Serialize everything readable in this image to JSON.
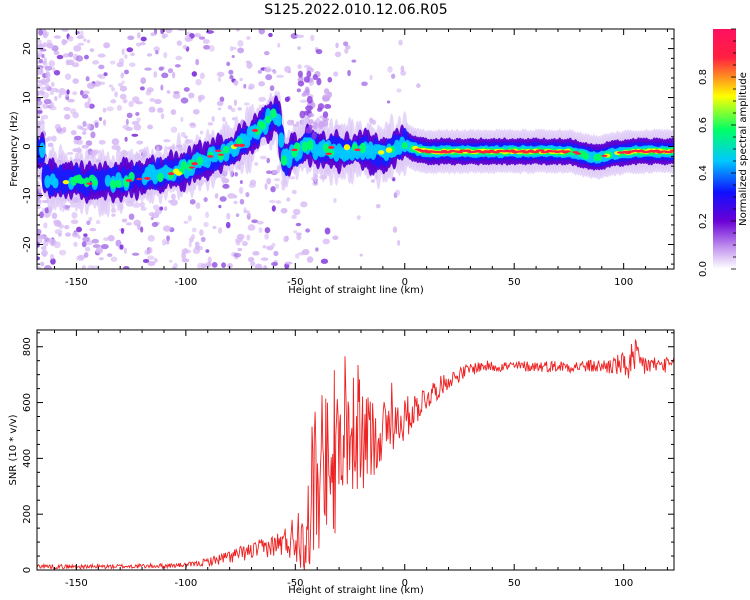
{
  "figure_title": "S125.2022.010.12.06.R05",
  "chart_data": [
    {
      "type": "heatmap",
      "title": "",
      "xlabel": "Height of straight line (km)",
      "ylabel": "Frequency (Hz)",
      "xlim": [
        -168,
        123
      ],
      "ylim": [
        -25,
        24
      ],
      "xticks": [
        -150,
        -100,
        -50,
        0,
        50,
        100
      ],
      "yticks": [
        -20,
        -10,
        0,
        10,
        20
      ],
      "colorbar": {
        "label": "Normalized spectral amplitude",
        "range": [
          0,
          1
        ],
        "ticks": [
          "0.0",
          "0.2",
          "0.4",
          "0.6",
          "0.8"
        ],
        "colors": [
          "#ffffff",
          "#c9a0f0",
          "#6b00d6",
          "#1010ff",
          "#00c8ff",
          "#00ff66",
          "#ffff00",
          "#ff2040"
        ]
      },
      "ridge": [
        {
          "x": -165,
          "y": -6.5
        },
        {
          "x": -150,
          "y": -7
        },
        {
          "x": -140,
          "y": -7.3
        },
        {
          "x": -130,
          "y": -7
        },
        {
          "x": -120,
          "y": -6.2
        },
        {
          "x": -110,
          "y": -5.5
        },
        {
          "x": -100,
          "y": -4.5
        },
        {
          "x": -95,
          "y": -3.5
        },
        {
          "x": -88,
          "y": -2
        },
        {
          "x": -80,
          "y": -1
        },
        {
          "x": -75,
          "y": 0.5
        },
        {
          "x": -68,
          "y": 3
        },
        {
          "x": -62,
          "y": 5.5
        },
        {
          "x": -58,
          "y": 6.5
        },
        {
          "x": -55,
          "y": -3
        },
        {
          "x": -50,
          "y": -1
        },
        {
          "x": -45,
          "y": 0.5
        },
        {
          "x": -40,
          "y": -0.5
        },
        {
          "x": -30,
          "y": -1
        },
        {
          "x": -20,
          "y": -0.8
        },
        {
          "x": -10,
          "y": -1.5
        },
        {
          "x": -3,
          "y": 0
        },
        {
          "x": 0,
          "y": 0.5
        },
        {
          "x": 5,
          "y": -0.5
        },
        {
          "x": 10,
          "y": -1
        },
        {
          "x": 50,
          "y": -1
        },
        {
          "x": 75,
          "y": -1
        },
        {
          "x": 82,
          "y": -1.8
        },
        {
          "x": 88,
          "y": -2.3
        },
        {
          "x": 95,
          "y": -1.5
        },
        {
          "x": 105,
          "y": -1
        },
        {
          "x": 120,
          "y": -1
        }
      ]
    },
    {
      "type": "line",
      "title": "",
      "xlabel": "Height of straight line (km)",
      "ylabel": "SNR (10 * v/v)",
      "xlim": [
        -168,
        123
      ],
      "ylim": [
        0,
        860
      ],
      "xticks": [
        -150,
        -100,
        -50,
        0,
        50,
        100
      ],
      "yticks": [
        0,
        200,
        400,
        600,
        800
      ],
      "series": [
        {
          "name": "SNR",
          "color": "#ee2222",
          "x": [
            -168,
            -160,
            -150,
            -140,
            -130,
            -120,
            -110,
            -100,
            -95,
            -90,
            -85,
            -80,
            -75,
            -70,
            -65,
            -60,
            -55,
            -50,
            -45,
            -40,
            -35,
            -30,
            -25,
            -20,
            -15,
            -10,
            -5,
            0,
            5,
            10,
            15,
            20,
            25,
            30,
            35,
            40,
            50,
            60,
            70,
            80,
            90,
            100,
            105,
            110,
            115,
            123
          ],
          "y": [
            15,
            12,
            12,
            12,
            13,
            14,
            15,
            18,
            22,
            30,
            38,
            48,
            58,
            68,
            78,
            88,
            100,
            120,
            160,
            230,
            310,
            370,
            410,
            450,
            480,
            500,
            520,
            540,
            580,
            620,
            650,
            680,
            700,
            720,
            730,
            730,
            730,
            730,
            730,
            730,
            730,
            735,
            740,
            735,
            735,
            735
          ],
          "noise": [
            8,
            8,
            8,
            8,
            8,
            8,
            8,
            8,
            10,
            15,
            20,
            25,
            28,
            30,
            35,
            40,
            55,
            90,
            180,
            200,
            220,
            220,
            200,
            180,
            150,
            120,
            90,
            80,
            60,
            50,
            40,
            30,
            25,
            25,
            20,
            20,
            20,
            20,
            22,
            22,
            25,
            45,
            90,
            40,
            30,
            25
          ]
        }
      ]
    }
  ]
}
